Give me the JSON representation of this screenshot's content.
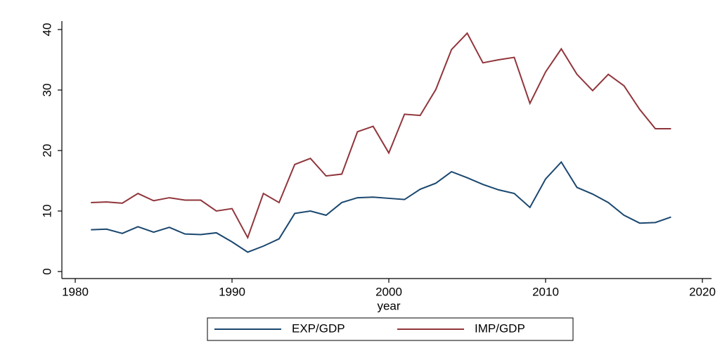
{
  "chart_data": {
    "type": "line",
    "x": [
      1981,
      1982,
      1983,
      1984,
      1985,
      1986,
      1987,
      1988,
      1989,
      1990,
      1991,
      1992,
      1993,
      1994,
      1995,
      1996,
      1997,
      1998,
      1999,
      2000,
      2001,
      2002,
      2003,
      2004,
      2005,
      2006,
      2007,
      2008,
      2009,
      2010,
      2011,
      2012,
      2013,
      2014,
      2015,
      2016,
      2017,
      2018
    ],
    "series": [
      {
        "name": "EXP/GDP",
        "color": "#1a476f",
        "values": [
          6.9,
          7.0,
          6.3,
          7.4,
          6.5,
          7.3,
          6.2,
          6.1,
          6.4,
          4.9,
          3.2,
          4.2,
          5.4,
          9.6,
          10.0,
          9.3,
          11.4,
          12.2,
          12.3,
          12.1,
          11.9,
          13.6,
          14.6,
          16.5,
          15.5,
          14.4,
          13.5,
          12.9,
          10.6,
          15.3,
          18.1,
          13.9,
          12.8,
          11.4,
          9.3,
          8.0,
          8.1,
          9.0
        ]
      },
      {
        "name": "IMP/GDP",
        "color": "#90353b",
        "values": [
          11.4,
          11.5,
          11.3,
          12.9,
          11.7,
          12.2,
          11.8,
          11.8,
          10.0,
          10.4,
          5.6,
          12.9,
          11.4,
          17.7,
          18.7,
          15.8,
          16.1,
          23.1,
          24.0,
          19.6,
          26.0,
          25.8,
          30.1,
          36.7,
          39.4,
          34.5,
          35.0,
          35.4,
          27.8,
          33.0,
          36.8,
          32.6,
          29.9,
          32.6,
          30.7,
          26.8,
          23.6,
          23.6
        ]
      }
    ],
    "xlabel": "year",
    "xlim": [
      1980,
      2020
    ],
    "xticks": [
      1980,
      1990,
      2000,
      2010,
      2020
    ],
    "ylim": [
      0,
      40
    ],
    "yticks": [
      0,
      10,
      20,
      30,
      40
    ],
    "legend": "bottom"
  }
}
